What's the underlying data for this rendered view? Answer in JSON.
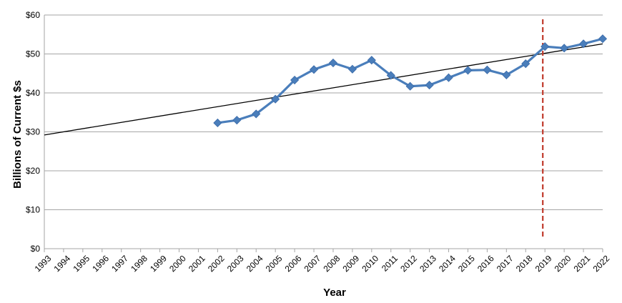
{
  "chart_data": {
    "type": "line",
    "title": "",
    "xlabel": "Year",
    "ylabel": "Billions of Current $s",
    "ylim": [
      0,
      60
    ],
    "y_ticks": [
      "$0",
      "$10",
      "$20",
      "$30",
      "$40",
      "$50",
      "$60"
    ],
    "x_categories": [
      "1993",
      "1994",
      "1995",
      "1996",
      "1997",
      "1998",
      "1999",
      "2000",
      "2001",
      "2002",
      "2003",
      "2004",
      "2005",
      "2006",
      "2007",
      "2008",
      "2009",
      "2010",
      "2011",
      "2012",
      "2013",
      "2014",
      "2015",
      "2016",
      "2017",
      "2018",
      "2019",
      "2020",
      "2021",
      "2022"
    ],
    "grid": "horizontal",
    "series": [
      {
        "x": [
          "2002",
          "2003",
          "2004",
          "2005",
          "2006",
          "2007",
          "2008",
          "2009",
          "2010",
          "2011",
          "2012",
          "2013",
          "2014",
          "2015",
          "2016",
          "2017",
          "2018",
          "2019",
          "2020",
          "2021",
          "2022"
        ],
        "values": [
          32.3,
          33.0,
          34.6,
          38.4,
          43.3,
          46.0,
          47.7,
          46.1,
          48.4,
          44.5,
          41.7,
          42.0,
          43.9,
          45.8,
          45.9,
          44.6,
          47.5,
          51.9,
          51.5,
          52.6,
          53.9
        ],
        "color": "#4a7ebb",
        "marker": "diamond"
      }
    ],
    "trendline": {
      "start": {
        "x": "1993",
        "y": 29.2
      },
      "end": {
        "x": "2022",
        "y": 52.6
      },
      "color": "#000000"
    },
    "marker_line": {
      "x": "2019",
      "color": "#c0392b",
      "style": "dashed"
    }
  }
}
